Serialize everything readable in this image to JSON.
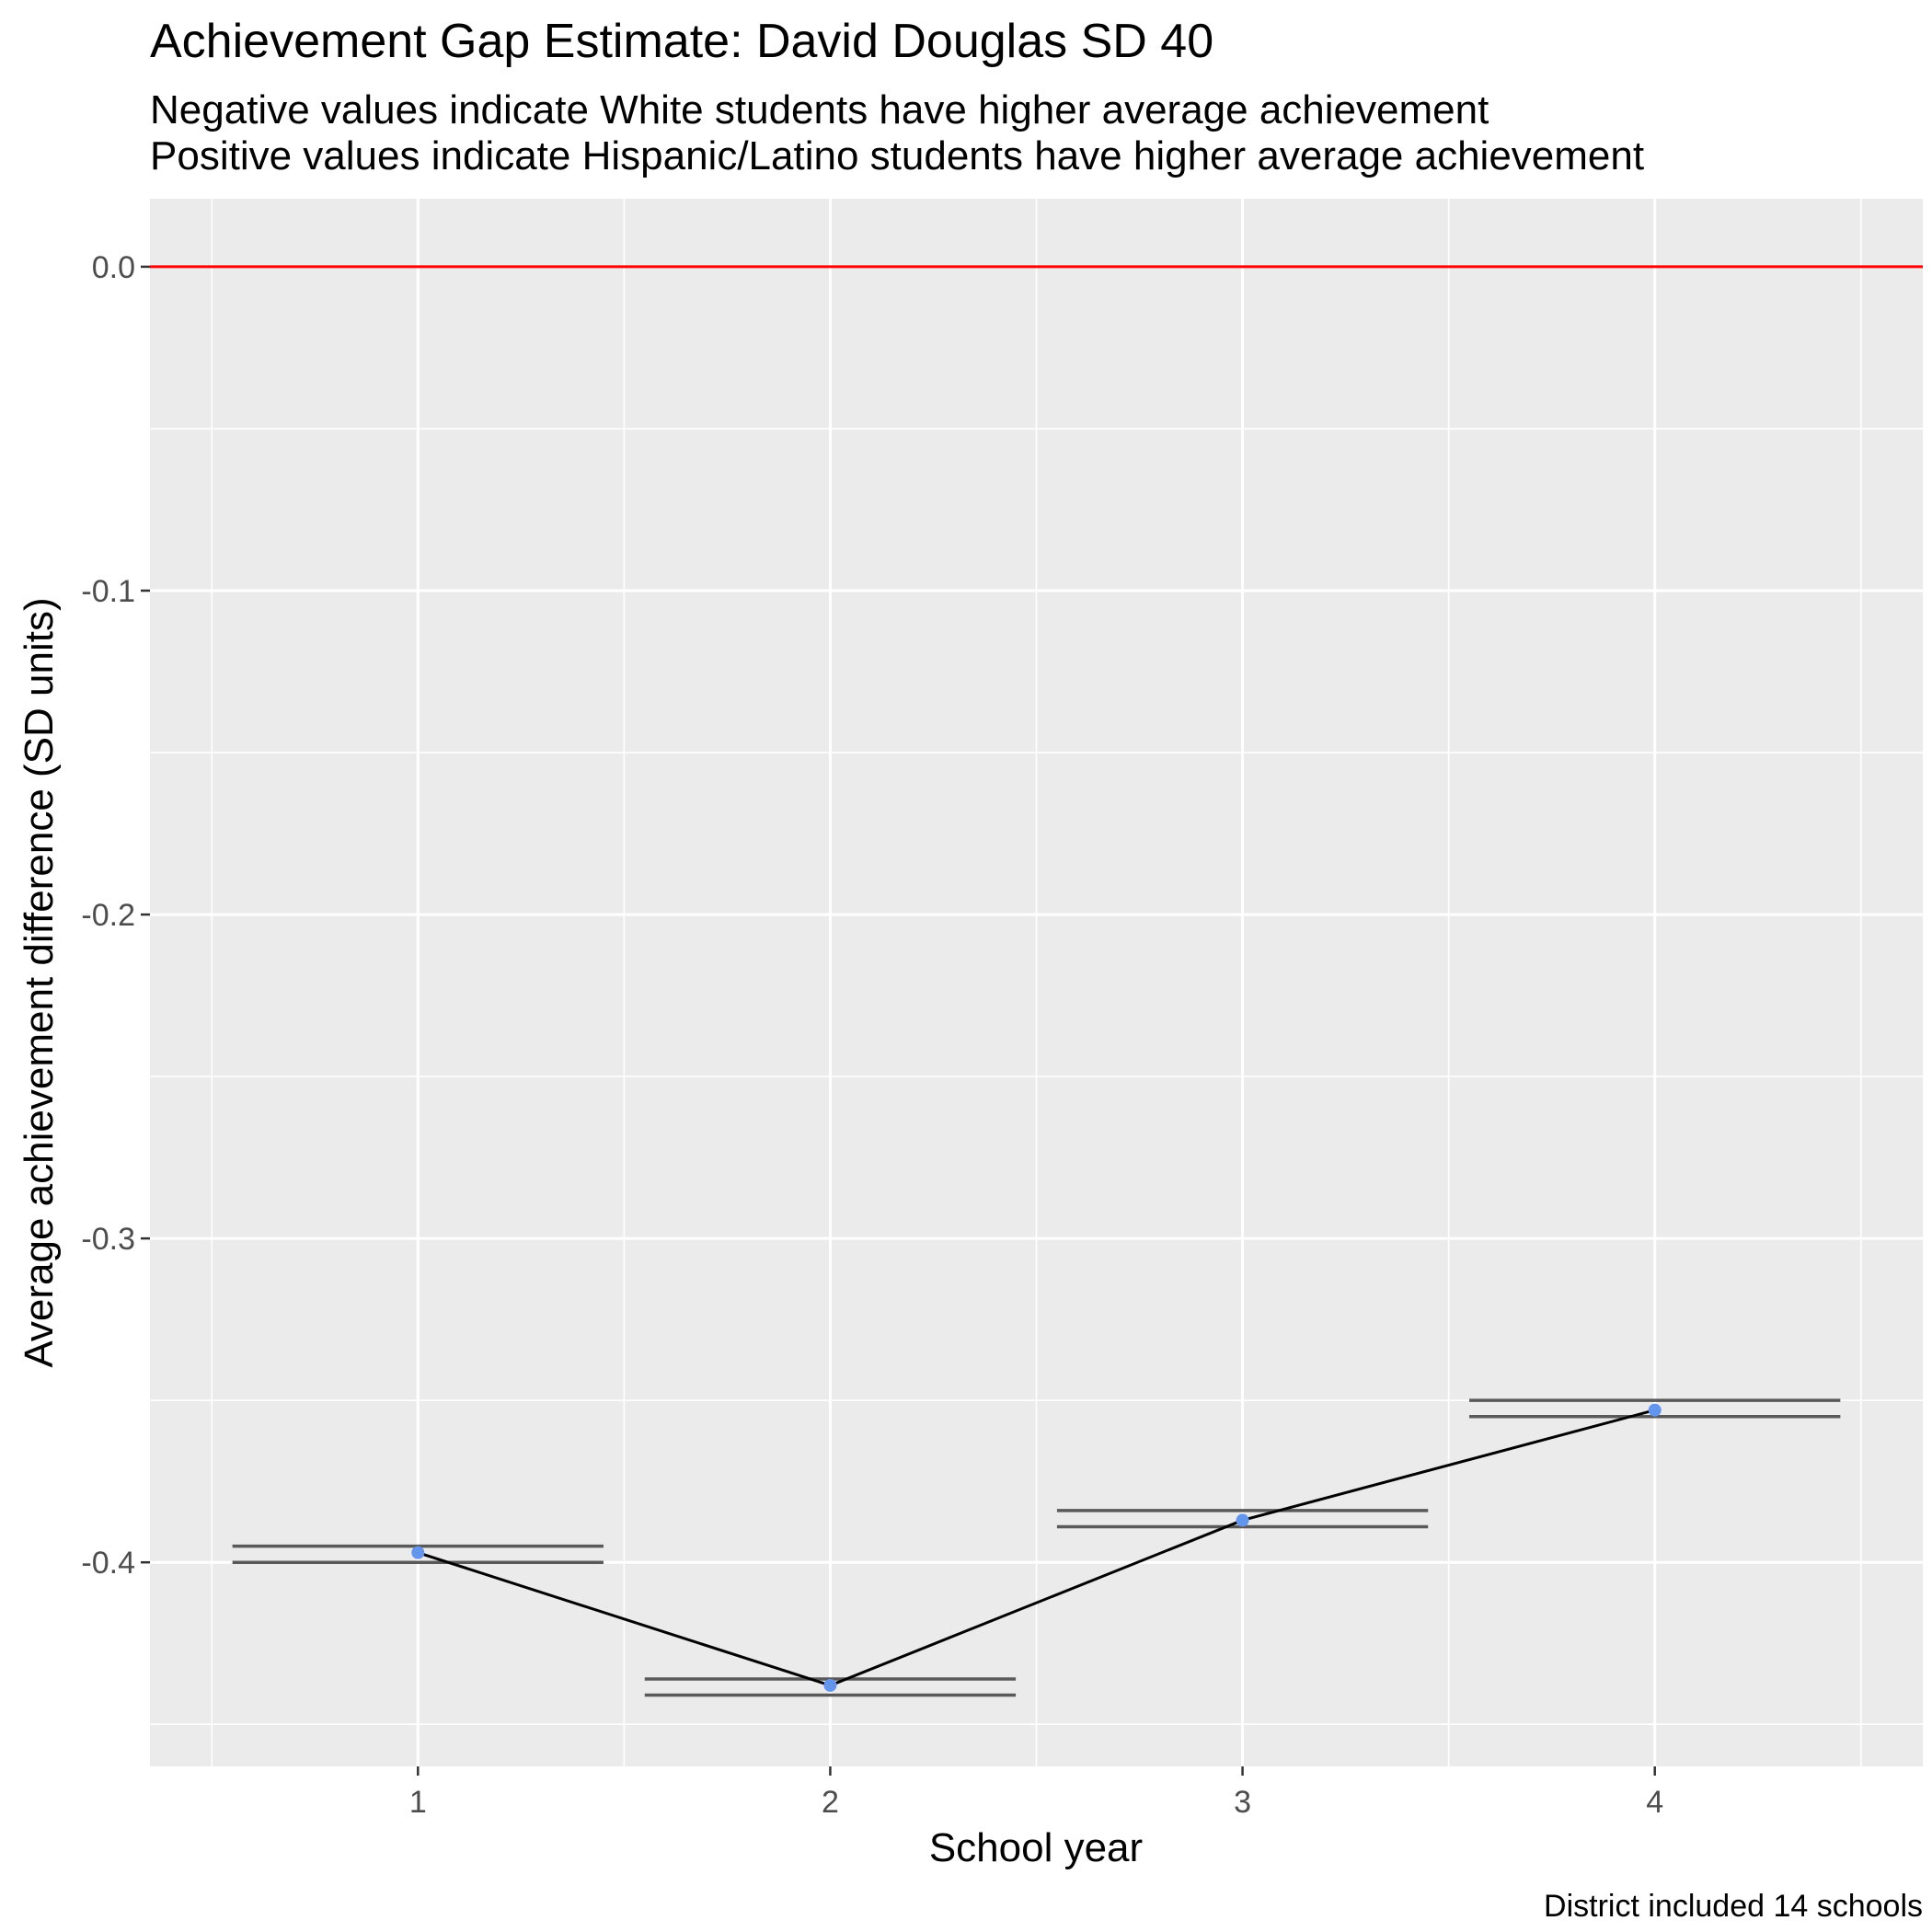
{
  "chart_data": {
    "type": "line",
    "title": "Achievement Gap Estimate: David Douglas SD 40",
    "subtitle_lines": [
      "Negative values indicate White students have higher average achievement",
      "Positive values indicate Hispanic/Latino students have higher average achievement"
    ],
    "xlabel": "School year",
    "ylabel": "Average achievement difference (SD units)",
    "caption": "District included 14 schools",
    "x_ticks": [
      "1",
      "2",
      "3",
      "4"
    ],
    "y_ticks": [
      "0.0",
      "-0.1",
      "-0.2",
      "-0.3",
      "-0.4"
    ],
    "xlim": [
      0.35,
      4.65
    ],
    "ylim": [
      -0.463,
      0.021
    ],
    "reference_line": {
      "y": 0.0,
      "color": "#ff0000"
    },
    "series": [
      {
        "x": [
          1,
          2,
          3,
          4
        ],
        "y": [
          -0.397,
          -0.438,
          -0.387,
          -0.353
        ],
        "point_color": "#6495ed",
        "line_color": "#000000"
      }
    ],
    "error_bars": [
      {
        "x": 1,
        "upper": -0.395,
        "lower": -0.4
      },
      {
        "x": 2,
        "upper": -0.436,
        "lower": -0.441
      },
      {
        "x": 3,
        "upper": -0.384,
        "lower": -0.389
      },
      {
        "x": 4,
        "upper": -0.35,
        "lower": -0.355
      }
    ],
    "grid": true,
    "panel_background": "#ebebeb"
  }
}
